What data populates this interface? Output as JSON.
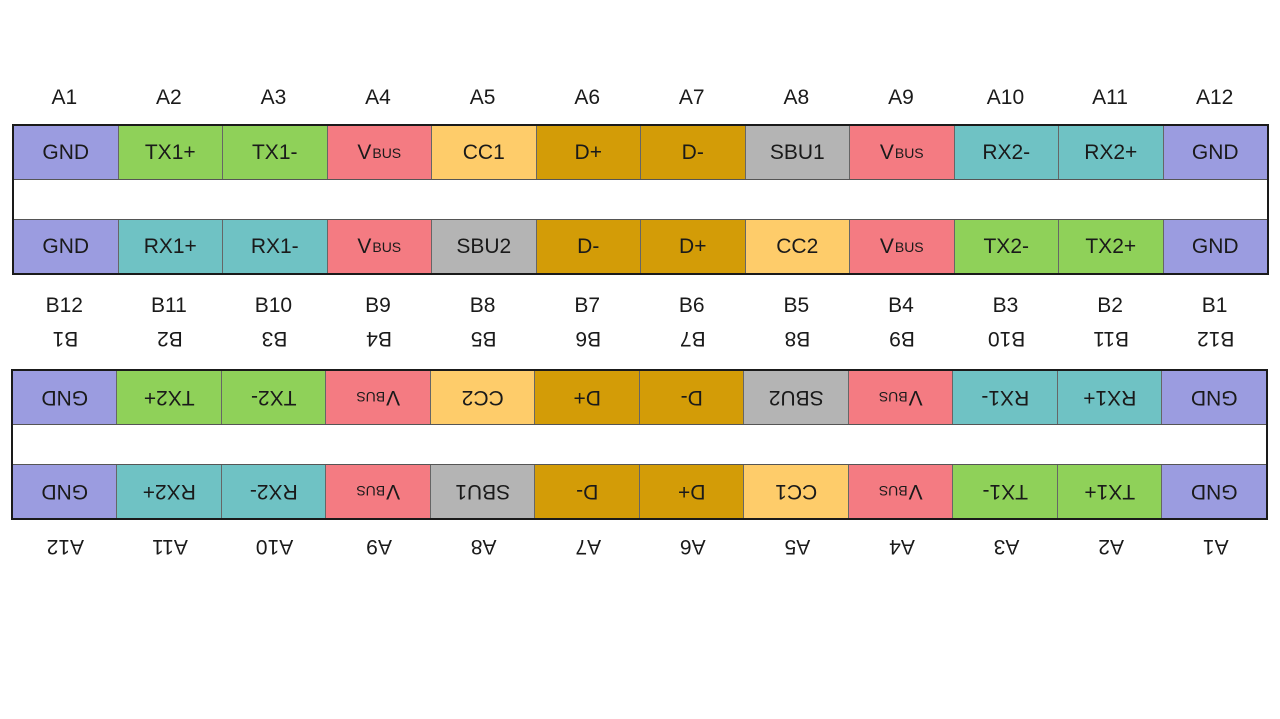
{
  "colors": {
    "GND": "#9b9ce0",
    "TX": "#8fd159",
    "RX": "#6fc2c4",
    "VBUS": "#f47b82",
    "CC": "#fecc6a",
    "D": "#d39c07",
    "SBU": "#b4b4b4"
  },
  "diagrams": [
    {
      "top_labels": [
        "A1",
        "A2",
        "A3",
        "A4",
        "A5",
        "A6",
        "A7",
        "A8",
        "A9",
        "A10",
        "A11",
        "A12"
      ],
      "top_row": [
        {
          "text": "GND",
          "sub": "",
          "c": "GND"
        },
        {
          "text": "TX1+",
          "sub": "",
          "c": "TX"
        },
        {
          "text": "TX1-",
          "sub": "",
          "c": "TX"
        },
        {
          "text": "V",
          "sub": "BUS",
          "c": "VBUS"
        },
        {
          "text": "CC1",
          "sub": "",
          "c": "CC"
        },
        {
          "text": "D+",
          "sub": "",
          "c": "D"
        },
        {
          "text": "D-",
          "sub": "",
          "c": "D"
        },
        {
          "text": "SBU1",
          "sub": "",
          "c": "SBU"
        },
        {
          "text": "V",
          "sub": "BUS",
          "c": "VBUS"
        },
        {
          "text": "RX2-",
          "sub": "",
          "c": "RX"
        },
        {
          "text": "RX2+",
          "sub": "",
          "c": "RX"
        },
        {
          "text": "GND",
          "sub": "",
          "c": "GND"
        }
      ],
      "bottom_row": [
        {
          "text": "GND",
          "sub": "",
          "c": "GND"
        },
        {
          "text": "RX1+",
          "sub": "",
          "c": "RX"
        },
        {
          "text": "RX1-",
          "sub": "",
          "c": "RX"
        },
        {
          "text": "V",
          "sub": "BUS",
          "c": "VBUS"
        },
        {
          "text": "SBU2",
          "sub": "",
          "c": "SBU"
        },
        {
          "text": "D-",
          "sub": "",
          "c": "D"
        },
        {
          "text": "D+",
          "sub": "",
          "c": "D"
        },
        {
          "text": "CC2",
          "sub": "",
          "c": "CC"
        },
        {
          "text": "V",
          "sub": "BUS",
          "c": "VBUS"
        },
        {
          "text": "TX2-",
          "sub": "",
          "c": "TX"
        },
        {
          "text": "TX2+",
          "sub": "",
          "c": "TX"
        },
        {
          "text": "GND",
          "sub": "",
          "c": "GND"
        }
      ],
      "bottom_labels": [
        "B12",
        "B11",
        "B10",
        "B9",
        "B8",
        "B7",
        "B6",
        "B5",
        "B4",
        "B3",
        "B2",
        "B1"
      ]
    },
    {
      "top_labels": [
        "A1",
        "A2",
        "A3",
        "A4",
        "A5",
        "A6",
        "A7",
        "A8",
        "A9",
        "A10",
        "A11",
        "A12"
      ],
      "top_row": [
        {
          "text": "GND",
          "sub": "",
          "c": "GND"
        },
        {
          "text": "TX1+",
          "sub": "",
          "c": "TX"
        },
        {
          "text": "TX1-",
          "sub": "",
          "c": "TX"
        },
        {
          "text": "V",
          "sub": "BUS",
          "c": "VBUS"
        },
        {
          "text": "CC1",
          "sub": "",
          "c": "CC"
        },
        {
          "text": "D+",
          "sub": "",
          "c": "D"
        },
        {
          "text": "D-",
          "sub": "",
          "c": "D"
        },
        {
          "text": "SBU1",
          "sub": "",
          "c": "SBU"
        },
        {
          "text": "V",
          "sub": "BUS",
          "c": "VBUS"
        },
        {
          "text": "RX2-",
          "sub": "",
          "c": "RX"
        },
        {
          "text": "RX2+",
          "sub": "",
          "c": "RX"
        },
        {
          "text": "GND",
          "sub": "",
          "c": "GND"
        }
      ],
      "bottom_row": [
        {
          "text": "GND",
          "sub": "",
          "c": "GND"
        },
        {
          "text": "RX1+",
          "sub": "",
          "c": "RX"
        },
        {
          "text": "RX1-",
          "sub": "",
          "c": "RX"
        },
        {
          "text": "V",
          "sub": "BUS",
          "c": "VBUS"
        },
        {
          "text": "SBU2",
          "sub": "",
          "c": "SBU"
        },
        {
          "text": "D-",
          "sub": "",
          "c": "D"
        },
        {
          "text": "D+",
          "sub": "",
          "c": "D"
        },
        {
          "text": "CC2",
          "sub": "",
          "c": "CC"
        },
        {
          "text": "V",
          "sub": "BUS",
          "c": "VBUS"
        },
        {
          "text": "TX2-",
          "sub": "",
          "c": "TX"
        },
        {
          "text": "TX2+",
          "sub": "",
          "c": "TX"
        },
        {
          "text": "GND",
          "sub": "",
          "c": "GND"
        }
      ],
      "bottom_labels": [
        "B12",
        "B11",
        "B10",
        "B9",
        "B8",
        "B7",
        "B6",
        "B5",
        "B4",
        "B3",
        "B2",
        "B1"
      ]
    }
  ]
}
